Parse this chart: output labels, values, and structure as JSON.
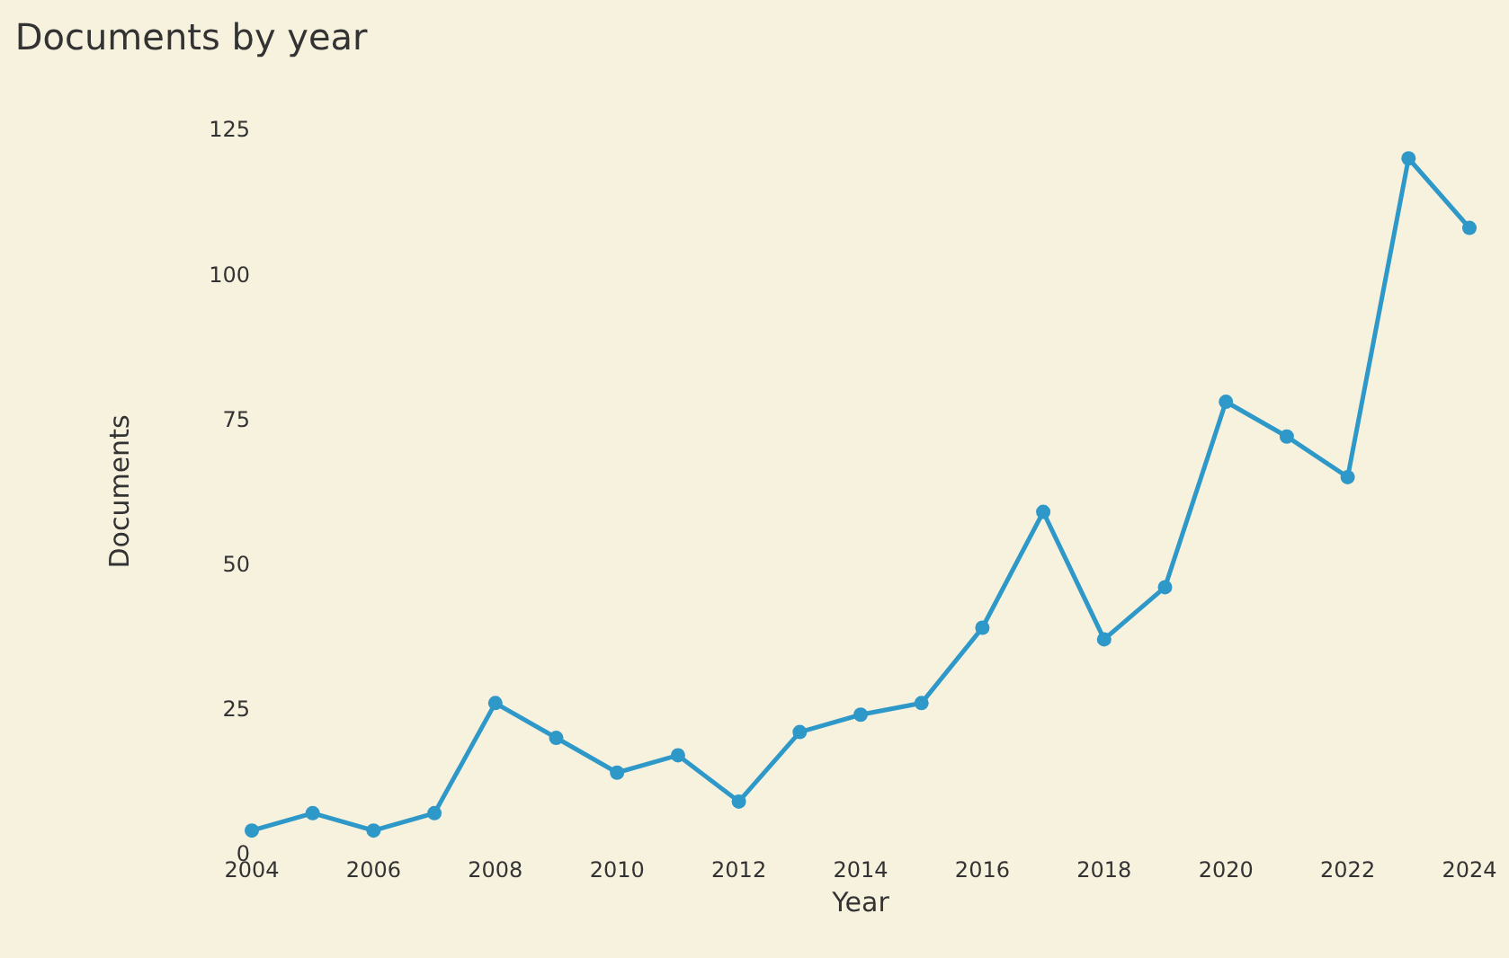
{
  "chart_data": {
    "type": "line",
    "title": "Documents by year",
    "xlabel": "Year",
    "ylabel": "Documents",
    "x": [
      2004,
      2005,
      2006,
      2007,
      2008,
      2009,
      2010,
      2011,
      2012,
      2013,
      2014,
      2015,
      2016,
      2017,
      2018,
      2019,
      2020,
      2021,
      2022,
      2023,
      2024
    ],
    "series": [
      {
        "color": "#2e98c8",
        "values": [
          4,
          7,
          4,
          7,
          26,
          20,
          14,
          17,
          9,
          21,
          24,
          26,
          39,
          59,
          37,
          46,
          78,
          72,
          65,
          120,
          108
        ]
      }
    ],
    "xlim": [
      2004,
      2024
    ],
    "xticks": [
      2004,
      2006,
      2008,
      2010,
      2012,
      2014,
      2016,
      2018,
      2020,
      2022,
      2024
    ],
    "ylim": [
      0,
      125
    ],
    "yticks": [
      0,
      25,
      50,
      75,
      100,
      125
    ],
    "grid": false,
    "legend": false,
    "marker": "circle",
    "line_style": "solid"
  }
}
